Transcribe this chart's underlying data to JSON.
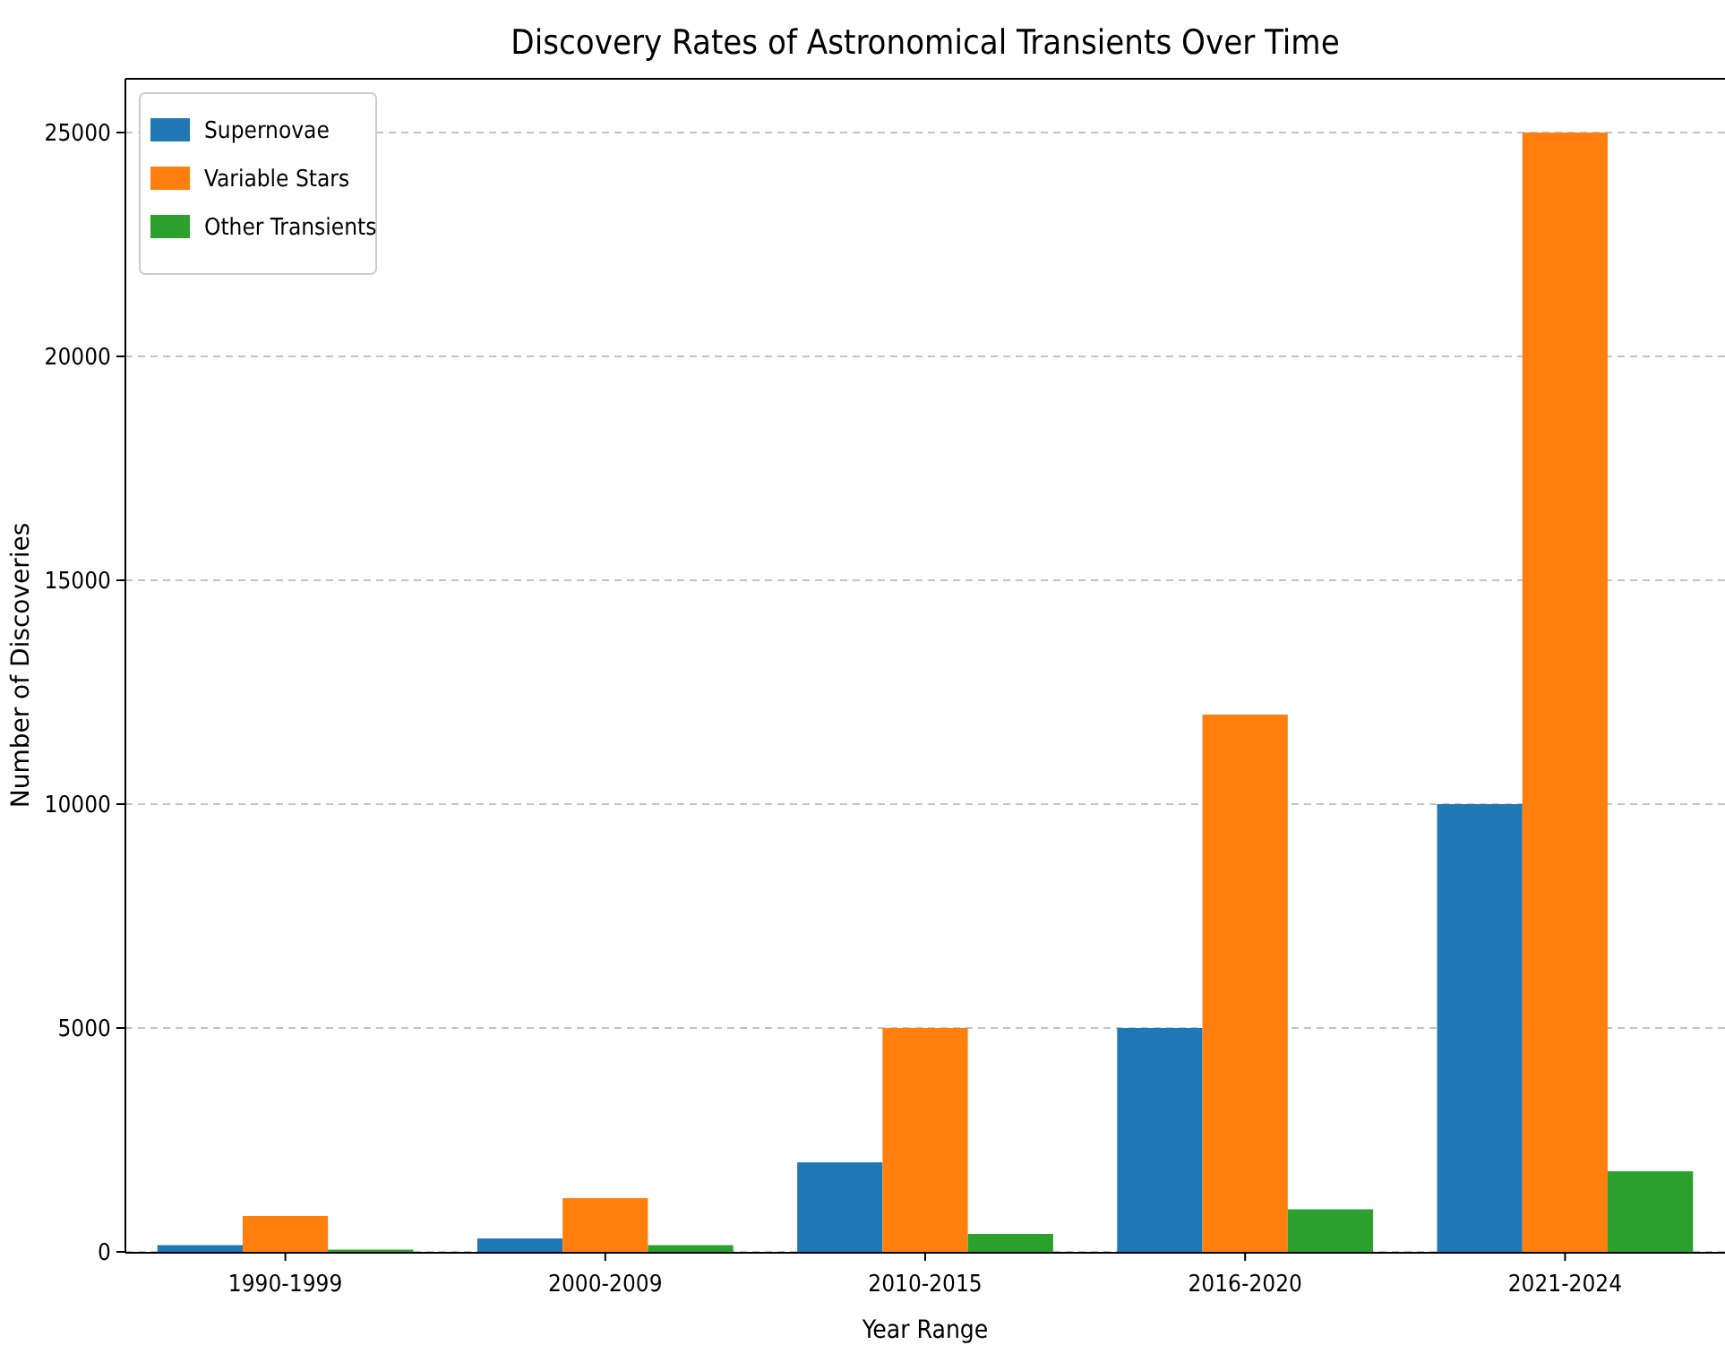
{
  "chart_data": {
    "type": "bar",
    "title": "Discovery Rates of Astronomical Transients Over Time",
    "xlabel": "Year Range",
    "ylabel": "Number of Discoveries",
    "categories": [
      "1990-1999",
      "2000-2009",
      "2010-2015",
      "2016-2020",
      "2021-2024"
    ],
    "series": [
      {
        "name": "Supernovae",
        "color": "#1f77b4",
        "values": [
          150,
          300,
          2000,
          5000,
          10000
        ]
      },
      {
        "name": "Variable Stars",
        "color": "#ff7f0e",
        "values": [
          800,
          1200,
          5000,
          12000,
          25000
        ]
      },
      {
        "name": "Other Transients",
        "color": "#2ca02c",
        "values": [
          50,
          150,
          400,
          950,
          1800
        ]
      }
    ],
    "ylim": [
      0,
      26200
    ],
    "yticks": [
      0,
      5000,
      10000,
      15000,
      20000,
      25000
    ],
    "grid": "y",
    "legend": "top left"
  }
}
